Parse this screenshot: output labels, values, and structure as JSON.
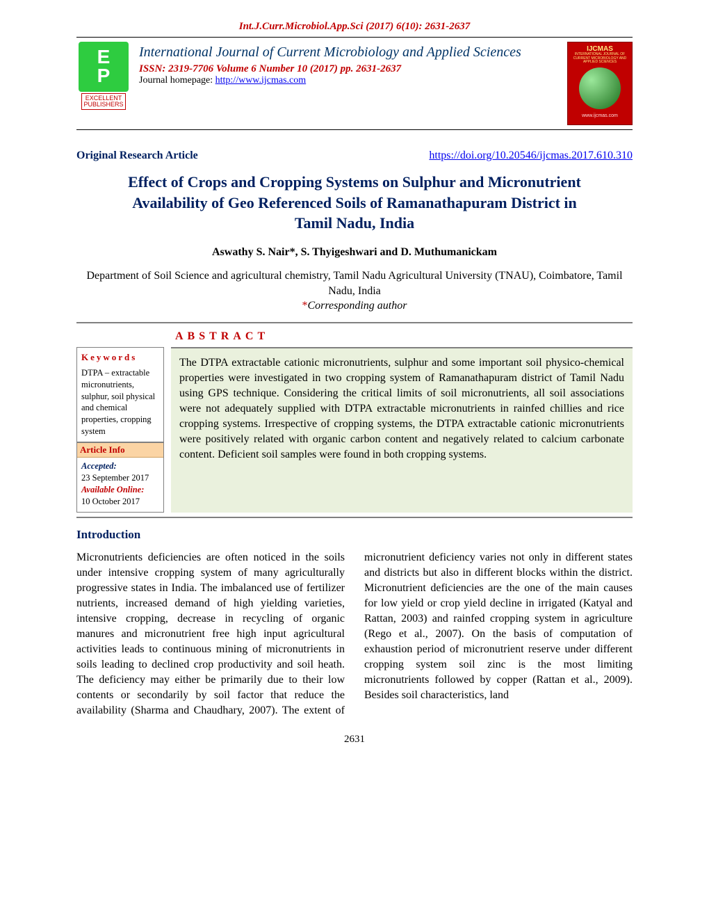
{
  "header": {
    "citation": "Int.J.Curr.Microbiol.App.Sci (2017) 6(10): 2631-2637",
    "journal_name": "International Journal of Current Microbiology and Applied Sciences",
    "issn_line": "ISSN: 2319-7706 Volume 6 Number 10 (2017) pp. 2631-2637",
    "homepage_prefix": "Journal homepage: ",
    "homepage_url": "http://www.ijcmas.com",
    "logo_left_line1": "EXCELLENT",
    "logo_left_line2": "PUBLISHERS",
    "logo_right_title": "IJCMAS",
    "logo_right_sub": "INTERNATIONAL JOURNAL OF CURRENT MICROBIOLOGY AND APPLIED SCIENCES",
    "logo_right_url": "www.ijcmas.com"
  },
  "meta": {
    "article_type": "Original Research Article",
    "doi_url": "https://doi.org/10.20546/ijcmas.2017.610.310"
  },
  "title": "Effect of Crops and Cropping Systems on Sulphur and Micronutrient Availability of Geo Referenced Soils of Ramanathapuram District in Tamil Nadu, India",
  "authors": "Aswathy S. Nair*, S. Thyigeshwari and D. Muthumanickam",
  "affiliation": "Department of Soil Science and agricultural chemistry, Tamil Nadu Agricultural University (TNAU), Coimbatore, Tamil Nadu, India",
  "corresponding": "Corresponding author",
  "abstract": {
    "label": "ABSTRACT",
    "text": "The DTPA extractable cationic micronutrients, sulphur and some important soil physico-chemical properties were investigated in two cropping system of Ramanathapuram district of Tamil Nadu using GPS technique. Considering the critical limits of soil micronutrients, all soil associations were not adequately supplied with DTPA extractable micronutrients in rainfed chillies and rice cropping systems. Irrespective of cropping systems, the DTPA extractable cationic micronutrients were positively related with organic carbon content and negatively related to calcium carbonate content. Deficient soil samples were found in both cropping systems."
  },
  "keywords": {
    "label": "Keywords",
    "text": "DTPA – extractable micronutrients, sulphur, soil physical and chemical properties, cropping system"
  },
  "article_info": {
    "label": "Article Info",
    "accepted_label": "Accepted:",
    "accepted_date": "23 September 2017",
    "available_label": "Available Online:",
    "available_date": "10 October 2017"
  },
  "introduction": {
    "heading": "Introduction",
    "body": "Micronutrients deficiencies are often noticed in the soils under intensive cropping system of many agriculturally progressive states in India. The imbalanced use of fertilizer nutrients, increased demand of high yielding varieties, intensive cropping, decrease in recycling of organic manures and micronutrient free high input agricultural activities leads to continuous mining of micronutrients in soils leading to declined crop productivity and soil heath. The deficiency may either be primarily due to their low contents or secondarily by soil factor that reduce the availability (Sharma and Chaudhary, 2007). The extent of micronutrient deficiency varies not only in different states and districts but also in different blocks within the district. Micronutrient deficiencies are the one of the main causes for low yield or crop yield decline in irrigated (Katyal and Rattan, 2003) and rainfed cropping system in agriculture (Rego et al., 2007). On the basis of computation of exhaustion period of micronutrient reserve under different cropping system soil zinc is the most limiting micronutrients followed by copper (Rattan et al., 2009). Besides soil characteristics, land"
  },
  "page_number": "2631",
  "colors": {
    "brand_red": "#c00000",
    "brand_blue": "#002060",
    "abstract_bg": "#eaf1dd",
    "info_header_bg": "#fbd4a4",
    "rule_gray": "#808080"
  }
}
